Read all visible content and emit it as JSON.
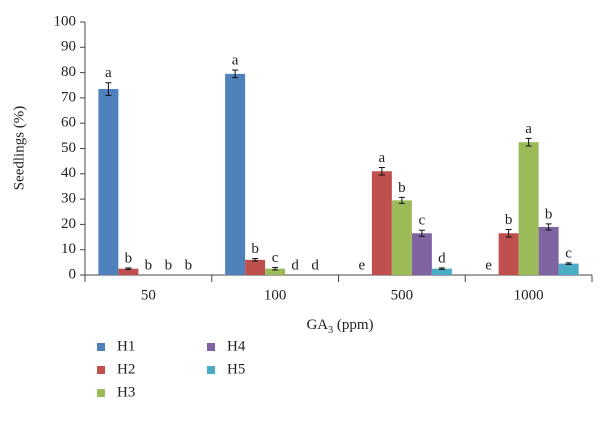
{
  "chart_data": {
    "type": "bar",
    "ylabel": "Seedlings (%)",
    "xlabel": [
      "GA",
      "3",
      " (ppm)"
    ],
    "categories": [
      "50",
      "100",
      "500",
      "1000"
    ],
    "ylim": [
      0,
      100
    ],
    "yticks": [
      0,
      10,
      20,
      30,
      40,
      50,
      60,
      70,
      80,
      90,
      100
    ],
    "series": [
      {
        "name": "H1",
        "color": "#4f81bd",
        "values": [
          73.5,
          79.5,
          0,
          0
        ],
        "errors": [
          2.5,
          1.5,
          null,
          null
        ],
        "letters": [
          "a",
          "a",
          "e",
          "e"
        ]
      },
      {
        "name": "H2",
        "color": "#c0504d",
        "values": [
          2.5,
          6,
          41,
          16.5
        ],
        "errors": [
          0.3,
          0.5,
          1.5,
          1.5
        ],
        "letters": [
          "b",
          "b",
          "a",
          "b"
        ]
      },
      {
        "name": "H3",
        "color": "#9bbb59",
        "values": [
          0,
          2.5,
          29.5,
          52.5
        ],
        "errors": [
          null,
          0.5,
          1.2,
          1.5
        ],
        "letters": [
          "b",
          "c",
          "b",
          "a"
        ]
      },
      {
        "name": "H4",
        "color": "#8064a2",
        "values": [
          0,
          0,
          16.5,
          19
        ],
        "errors": [
          null,
          null,
          1.2,
          1.2
        ],
        "letters": [
          "b",
          "d",
          "c",
          "b"
        ]
      },
      {
        "name": "H5",
        "color": "#4bacc6",
        "values": [
          0,
          0,
          2.5,
          4.5
        ],
        "errors": [
          null,
          null,
          0.3,
          0.3
        ],
        "letters": [
          "b",
          "d",
          "d",
          "c"
        ]
      }
    ]
  }
}
